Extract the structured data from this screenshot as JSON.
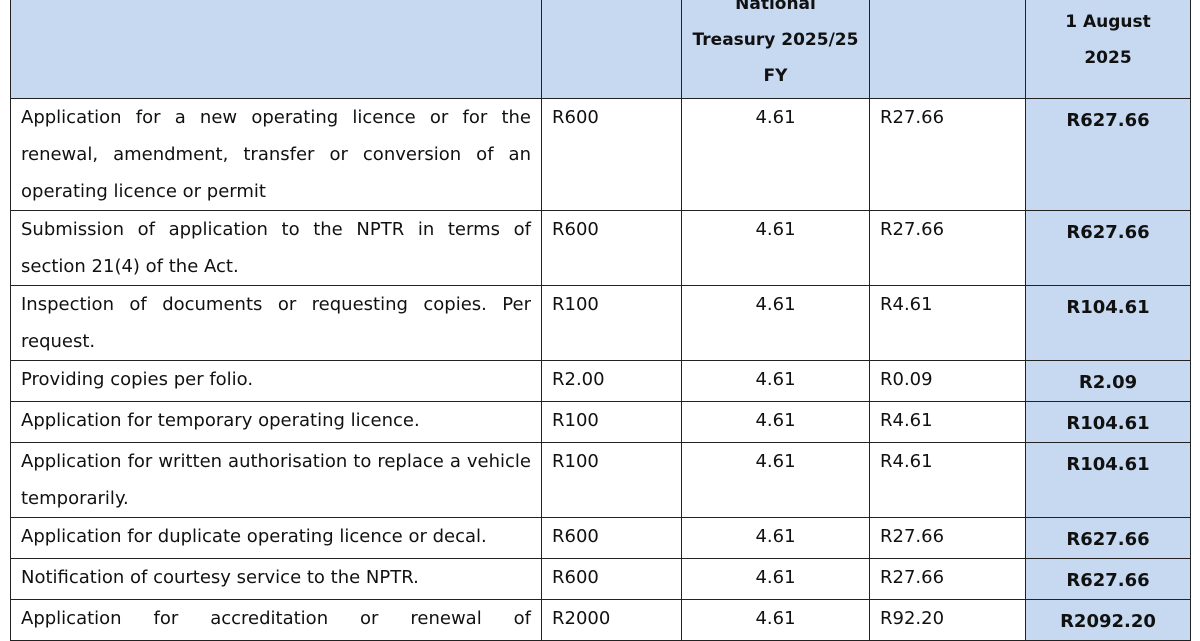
{
  "header": {
    "treasury": [
      "National",
      "Treasury 2025/25",
      "FY"
    ],
    "effective": [
      "1 August",
      "2025"
    ]
  },
  "table": {
    "rows": [
      [
        "Application for a new operating licence or for the renewal, amendment, transfer or conversion of an operating licence or permit",
        "R600",
        "4.61",
        "R27.66",
        "R627.66"
      ],
      [
        "Submission of application to the NPTR in terms of section 21(4) of the Act.",
        "R600",
        "4.61",
        "R27.66",
        "R627.66"
      ],
      [
        "Inspection of documents or requesting copies. Per request.",
        "R100",
        "4.61",
        "R4.61",
        "R104.61"
      ],
      [
        "Providing copies per folio.",
        "R2.00",
        "4.61",
        "R0.09",
        "R2.09"
      ],
      [
        "Application for temporary operating licence.",
        "R100",
        "4.61",
        "R4.61",
        "R104.61"
      ],
      [
        "Application for written authorisation to replace a vehicle temporarily.",
        "R100",
        "4.61",
        "R4.61",
        "R104.61"
      ],
      [
        "Application for duplicate operating licence or decal.",
        "R600",
        "4.61",
        "R27.66",
        "R627.66"
      ],
      [
        "Notification of courtesy service to the NPTR.",
        "R600",
        "4.61",
        "R27.66",
        "R627.66"
      ],
      [
        "Application for accreditation or renewal of",
        "R2000",
        "4.61",
        "R92.20",
        "R2092.20"
      ]
    ]
  }
}
